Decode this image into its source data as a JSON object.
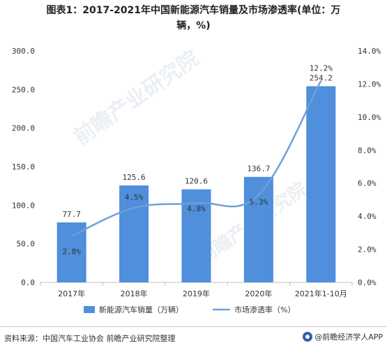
{
  "title_line1": "图表1：2017-2021年中国新能源汽车销量及市场渗透率(单位：万",
  "title_line2": "辆，%)",
  "watermark": "前瞻产业研究院",
  "footer": {
    "source": "资料来源：中国汽车工业协会 前瞻产业研究院整理",
    "brand": "@前瞻经济学人APP"
  },
  "colors": {
    "bar": "#4f8fdc",
    "line": "#6e9fd6",
    "text": "#333333"
  },
  "chart_data": {
    "type": "bar",
    "categories": [
      "2017年",
      "2018年",
      "2019年",
      "2020年",
      "2021年1-10月"
    ],
    "series": [
      {
        "name": "新能源汽车销量（万辆）",
        "type": "bar",
        "axis": "left",
        "values": [
          77.7,
          125.6,
          120.6,
          136.7,
          254.2
        ],
        "labels": [
          "77.7",
          "125.6",
          "120.6",
          "136.7",
          "254.2"
        ]
      },
      {
        "name": "市场渗透率（%）",
        "type": "line",
        "axis": "right",
        "values": [
          2.8,
          4.5,
          4.8,
          5.3,
          12.2
        ],
        "labels": [
          "2.8%",
          "4.5%",
          "4.8%",
          "5.3%",
          "12.2%"
        ]
      }
    ],
    "y_left": {
      "range": [
        0,
        300
      ],
      "ticks": [
        "0.0",
        "50.0",
        "100.0",
        "150.0",
        "200.0",
        "250.0",
        "300.0"
      ]
    },
    "y_right": {
      "range": [
        0,
        14
      ],
      "ticks": [
        "0.0%",
        "2.0%",
        "4.0%",
        "6.0%",
        "8.0%",
        "10.0%",
        "12.0%",
        "14.0%"
      ]
    },
    "grid": false,
    "legend": "bottom"
  }
}
